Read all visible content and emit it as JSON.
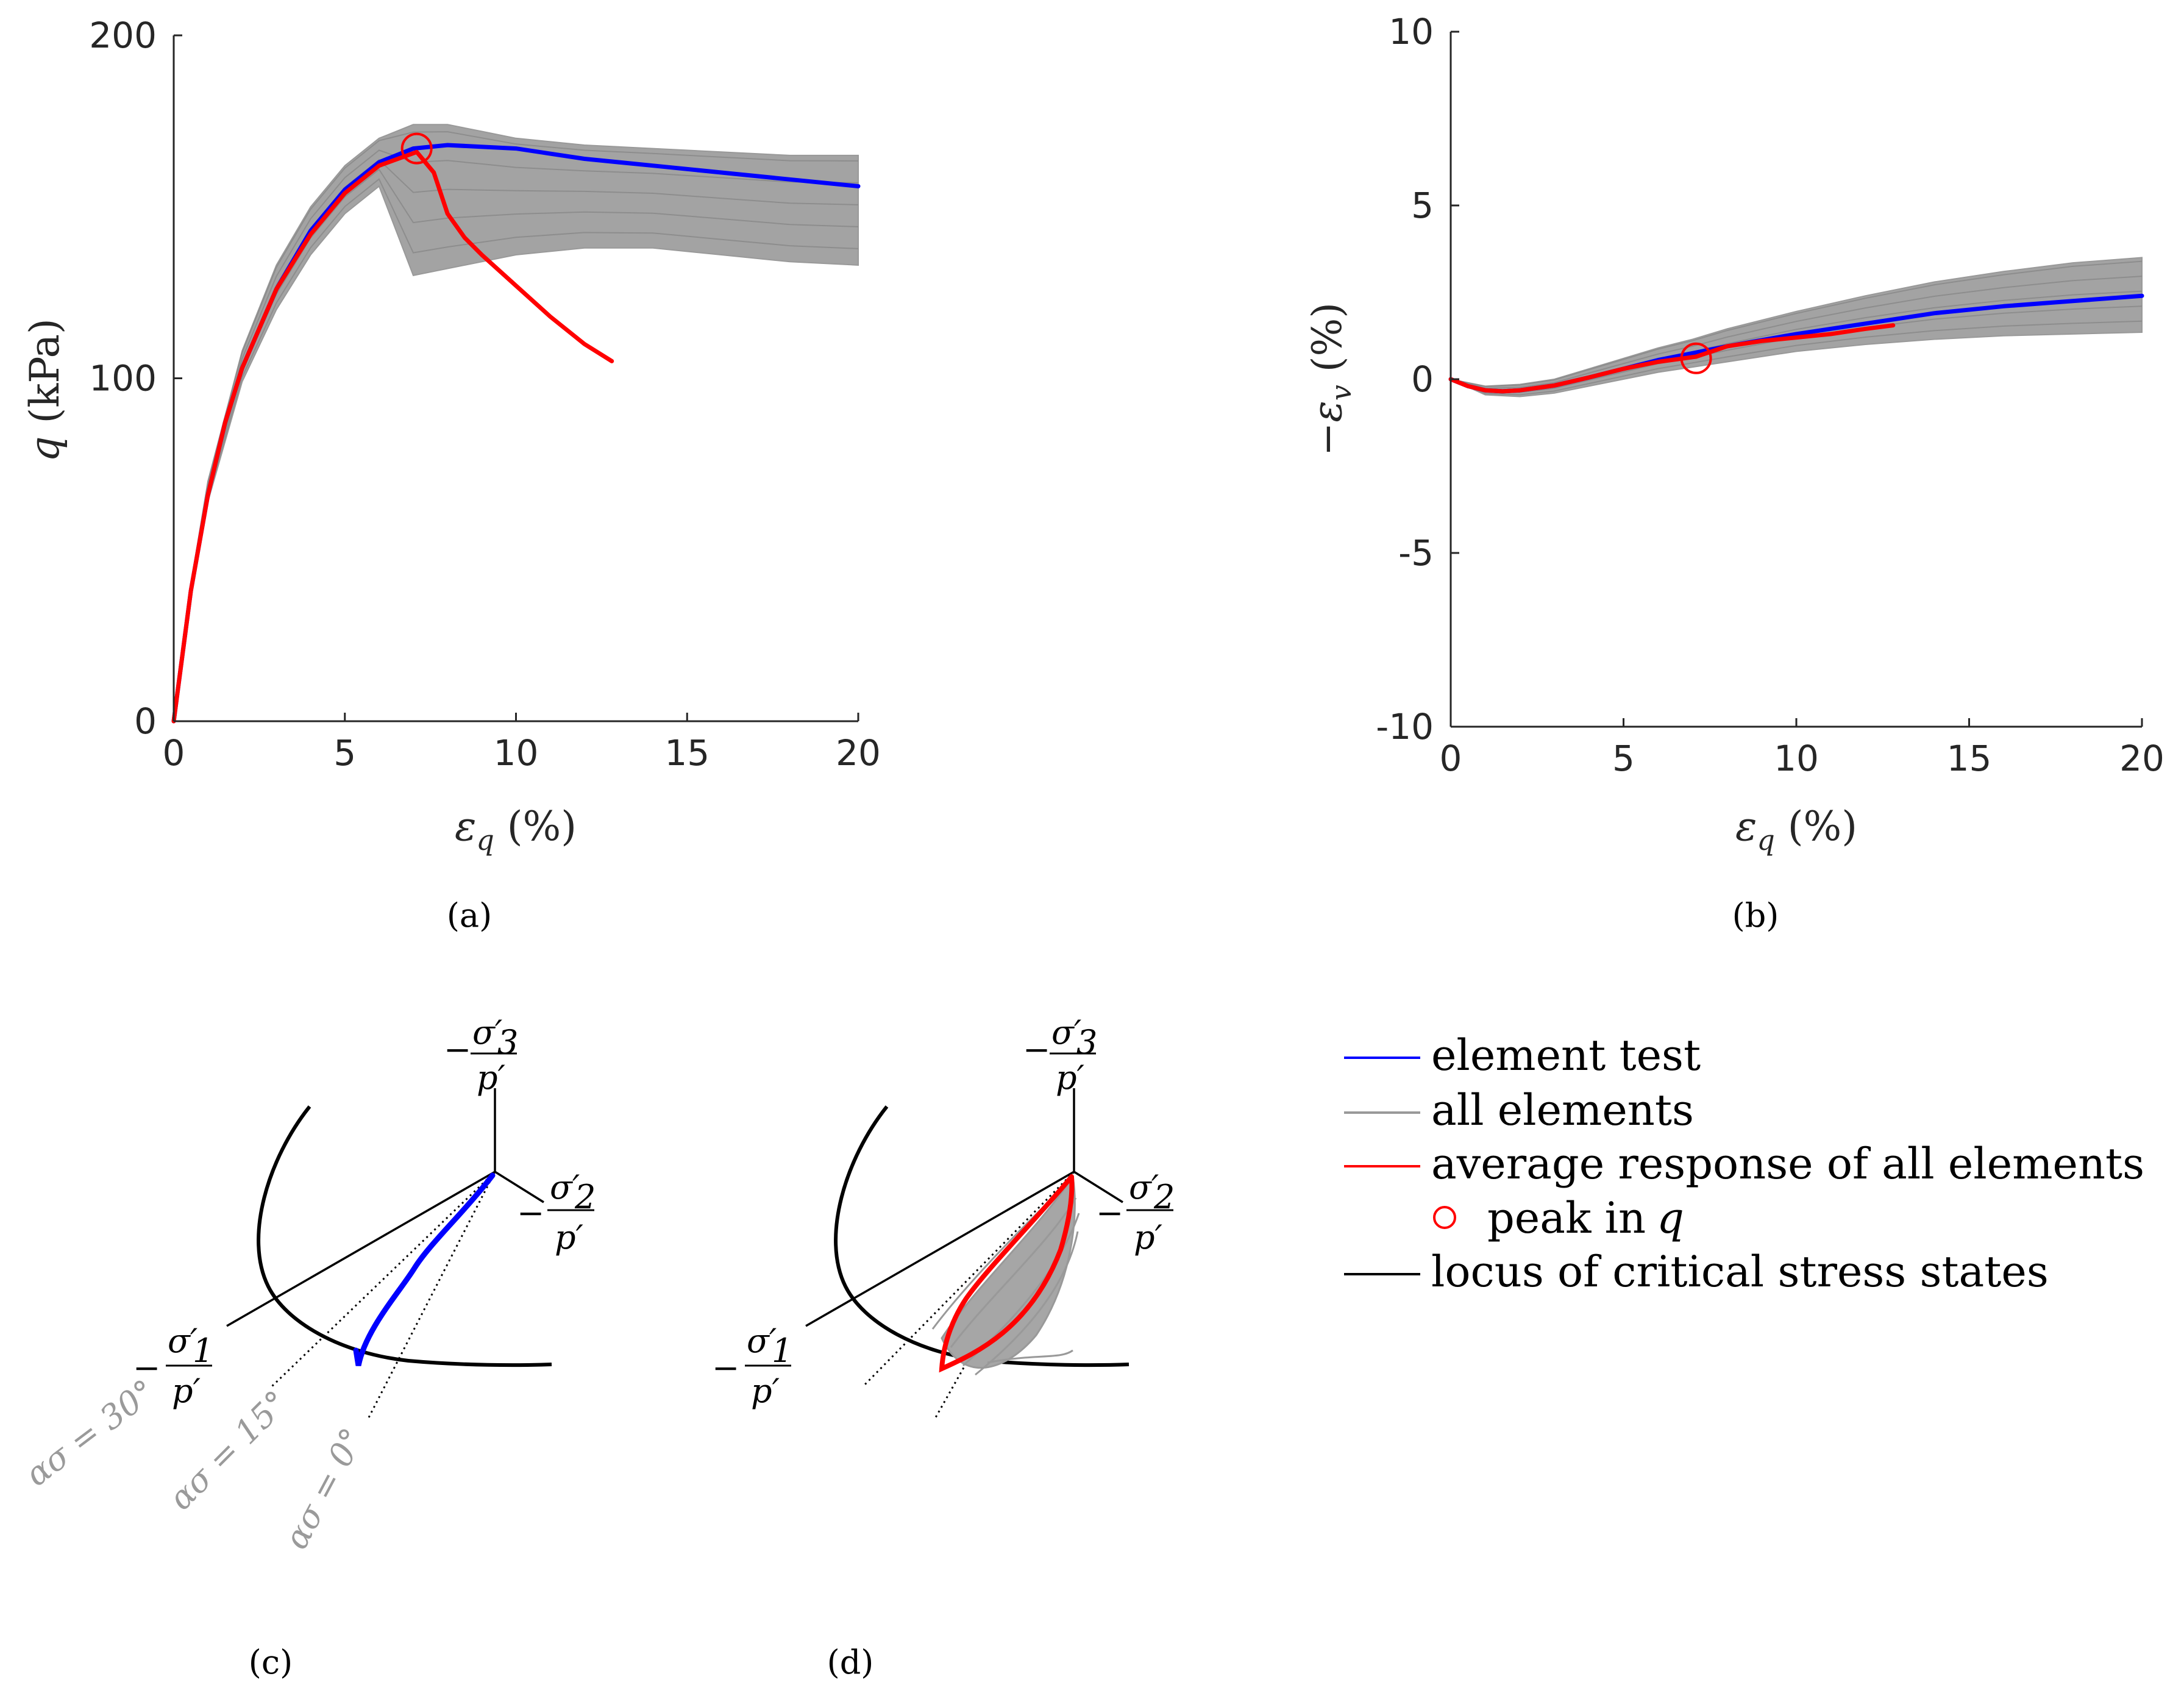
{
  "colors": {
    "element_test": "#0000ff",
    "all_elements": "#999999",
    "average": "#ff0000",
    "locus": "#000000",
    "axis": "#262626",
    "alpha_label": "#9a9a9a"
  },
  "panels": {
    "a": "(a)",
    "b": "(b)",
    "c": "(c)",
    "d": "(d)"
  },
  "chart_data": [
    {
      "id": "a",
      "type": "line",
      "xlabel": "εq (%)",
      "ylabel": "q (kPa)",
      "xlim": [
        0,
        20
      ],
      "ylim": [
        0,
        200
      ],
      "xticks": [
        "0",
        "5",
        "10",
        "15",
        "20"
      ],
      "yticks": [
        "0",
        "100",
        "200"
      ],
      "series": [
        {
          "name": "element test",
          "x": [
            0,
            0.5,
            1,
            1.5,
            2,
            3,
            4,
            5,
            6,
            7,
            8,
            10,
            12,
            14,
            16,
            18,
            20
          ],
          "y": [
            0,
            38,
            66,
            87,
            103,
            126,
            143,
            155,
            163,
            167,
            168,
            167,
            164,
            162,
            160,
            158,
            156
          ]
        },
        {
          "name": "average response of all elements",
          "x": [
            0,
            0.5,
            1,
            1.5,
            2,
            3,
            4,
            5,
            6,
            7.1,
            7.6,
            8,
            8.5,
            9,
            10,
            11,
            12,
            12.8
          ],
          "y": [
            0,
            38,
            66,
            87,
            103,
            126,
            142,
            154,
            162,
            166,
            160,
            148,
            141,
            136,
            127,
            118,
            110,
            105
          ]
        }
      ],
      "band": {
        "name": "all elements",
        "x": [
          0,
          0.5,
          1,
          2,
          3,
          4,
          5,
          6,
          7,
          8,
          9,
          10,
          12,
          14,
          16,
          18,
          20
        ],
        "upper": [
          0,
          40,
          70,
          108,
          133,
          150,
          162,
          170,
          174,
          174,
          172,
          170,
          168,
          167,
          166,
          165,
          165
        ],
        "lower": [
          0,
          36,
          64,
          99,
          120,
          136,
          148,
          156,
          130,
          132,
          134,
          136,
          138,
          138,
          136,
          134,
          133
        ]
      },
      "peak": {
        "x": 7.1,
        "y": 167
      }
    },
    {
      "id": "b",
      "type": "line",
      "xlabel": "εq (%)",
      "ylabel": "−εv (%)",
      "xlim": [
        0,
        20
      ],
      "ylim": [
        -10,
        10
      ],
      "xticks": [
        "0",
        "5",
        "10",
        "15",
        "20"
      ],
      "yticks": [
        "-10",
        "-5",
        "0",
        "5",
        "10"
      ],
      "series": [
        {
          "name": "element test",
          "x": [
            0,
            0.5,
            1,
            1.5,
            2,
            3,
            4,
            5,
            6,
            7,
            8,
            10,
            12,
            14,
            16,
            18,
            20
          ],
          "y": [
            0,
            -0.2,
            -0.32,
            -0.35,
            -0.32,
            -0.18,
            0.05,
            0.3,
            0.55,
            0.75,
            0.95,
            1.3,
            1.6,
            1.9,
            2.1,
            2.25,
            2.4
          ]
        },
        {
          "name": "average response of all elements",
          "x": [
            0,
            0.5,
            1,
            1.5,
            2,
            3,
            4,
            5,
            6,
            7.1,
            8,
            9,
            10,
            11,
            12,
            12.8
          ],
          "y": [
            0,
            -0.2,
            -0.32,
            -0.35,
            -0.32,
            -0.18,
            0.05,
            0.3,
            0.5,
            0.65,
            0.95,
            1.1,
            1.2,
            1.3,
            1.45,
            1.55
          ]
        }
      ],
      "band": {
        "name": "all elements",
        "x": [
          0,
          1,
          2,
          3,
          4,
          5,
          6,
          7,
          8,
          10,
          12,
          14,
          16,
          18,
          20
        ],
        "upper": [
          0,
          -0.2,
          -0.15,
          0.0,
          0.3,
          0.6,
          0.9,
          1.15,
          1.45,
          1.95,
          2.4,
          2.8,
          3.1,
          3.35,
          3.5
        ],
        "lower": [
          0,
          -0.45,
          -0.5,
          -0.4,
          -0.2,
          0.0,
          0.2,
          0.35,
          0.5,
          0.8,
          1.0,
          1.15,
          1.25,
          1.3,
          1.35
        ]
      },
      "peak": {
        "x": 7.1,
        "y": 0.6
      }
    }
  ],
  "diagrams": {
    "c": {
      "sigma1": {
        "lead": "−",
        "num": "σ′",
        "sub": "1",
        "den": "p′"
      },
      "sigma2": {
        "lead": "−",
        "num": "σ′",
        "sub": "2",
        "den": "p′"
      },
      "sigma3": {
        "lead": "−",
        "num": "σ′",
        "sub": "3",
        "den": "p′"
      },
      "alpha_labels": [
        "ασ = 30°",
        "ασ = 15°",
        "ασ = 0°"
      ]
    },
    "d": {
      "sigma1": {
        "lead": "−",
        "num": "σ′",
        "sub": "1",
        "den": "p′"
      },
      "sigma2": {
        "lead": "−",
        "num": "σ′",
        "sub": "2",
        "den": "p′"
      },
      "sigma3": {
        "lead": "−",
        "num": "σ′",
        "sub": "3",
        "den": "p′"
      }
    }
  },
  "legend": {
    "items": [
      {
        "label": "element test",
        "color": "#0000ff",
        "kind": "line"
      },
      {
        "label": "all elements",
        "color": "#999999",
        "kind": "line"
      },
      {
        "label": "average response of all elements",
        "color": "#ff0000",
        "kind": "line"
      },
      {
        "label": "peak in",
        "label_var": "q",
        "color": "#ff0000",
        "kind": "circle"
      },
      {
        "label": "locus of critical stress states",
        "color": "#000000",
        "kind": "line"
      }
    ]
  }
}
